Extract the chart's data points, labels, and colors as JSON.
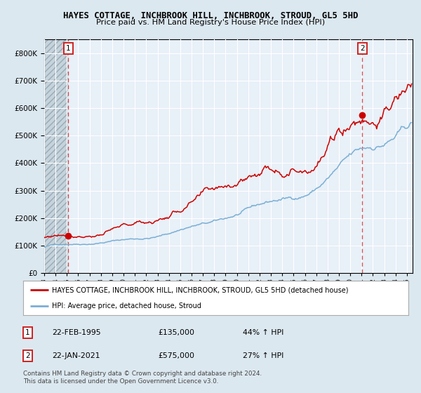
{
  "title": "HAYES COTTAGE, INCHBROOK HILL, INCHBROOK, STROUD, GL5 5HD",
  "subtitle": "Price paid vs. HM Land Registry's House Price Index (HPI)",
  "legend_label_red": "HAYES COTTAGE, INCHBROOK HILL, INCHBROOK, STROUD, GL5 5HD (detached house)",
  "legend_label_blue": "HPI: Average price, detached house, Stroud",
  "transaction1_date": "22-FEB-1995",
  "transaction1_price": "£135,000",
  "transaction1_hpi": "44% ↑ HPI",
  "transaction2_date": "22-JAN-2021",
  "transaction2_price": "£575,000",
  "transaction2_hpi": "27% ↑ HPI",
  "footer": "Contains HM Land Registry data © Crown copyright and database right 2024.\nThis data is licensed under the Open Government Licence v3.0.",
  "ylim": [
    0,
    850000
  ],
  "yticks": [
    0,
    100000,
    200000,
    300000,
    400000,
    500000,
    600000,
    700000,
    800000
  ],
  "ytick_labels": [
    "£0",
    "£100K",
    "£200K",
    "£300K",
    "£400K",
    "£500K",
    "£600K",
    "£700K",
    "£800K"
  ],
  "red_color": "#cc0000",
  "blue_color": "#7aafd4",
  "bg_color": "#dce8f0",
  "plot_bg": "#e8f0f8",
  "grid_color": "#ffffff",
  "vline_color": "#cc4444",
  "dot_color": "#cc0000",
  "transaction1_x": 1995.13,
  "transaction1_y": 135000,
  "transaction2_x": 2021.06,
  "transaction2_y": 575000,
  "xmin": 1993.0,
  "xmax": 2025.5
}
